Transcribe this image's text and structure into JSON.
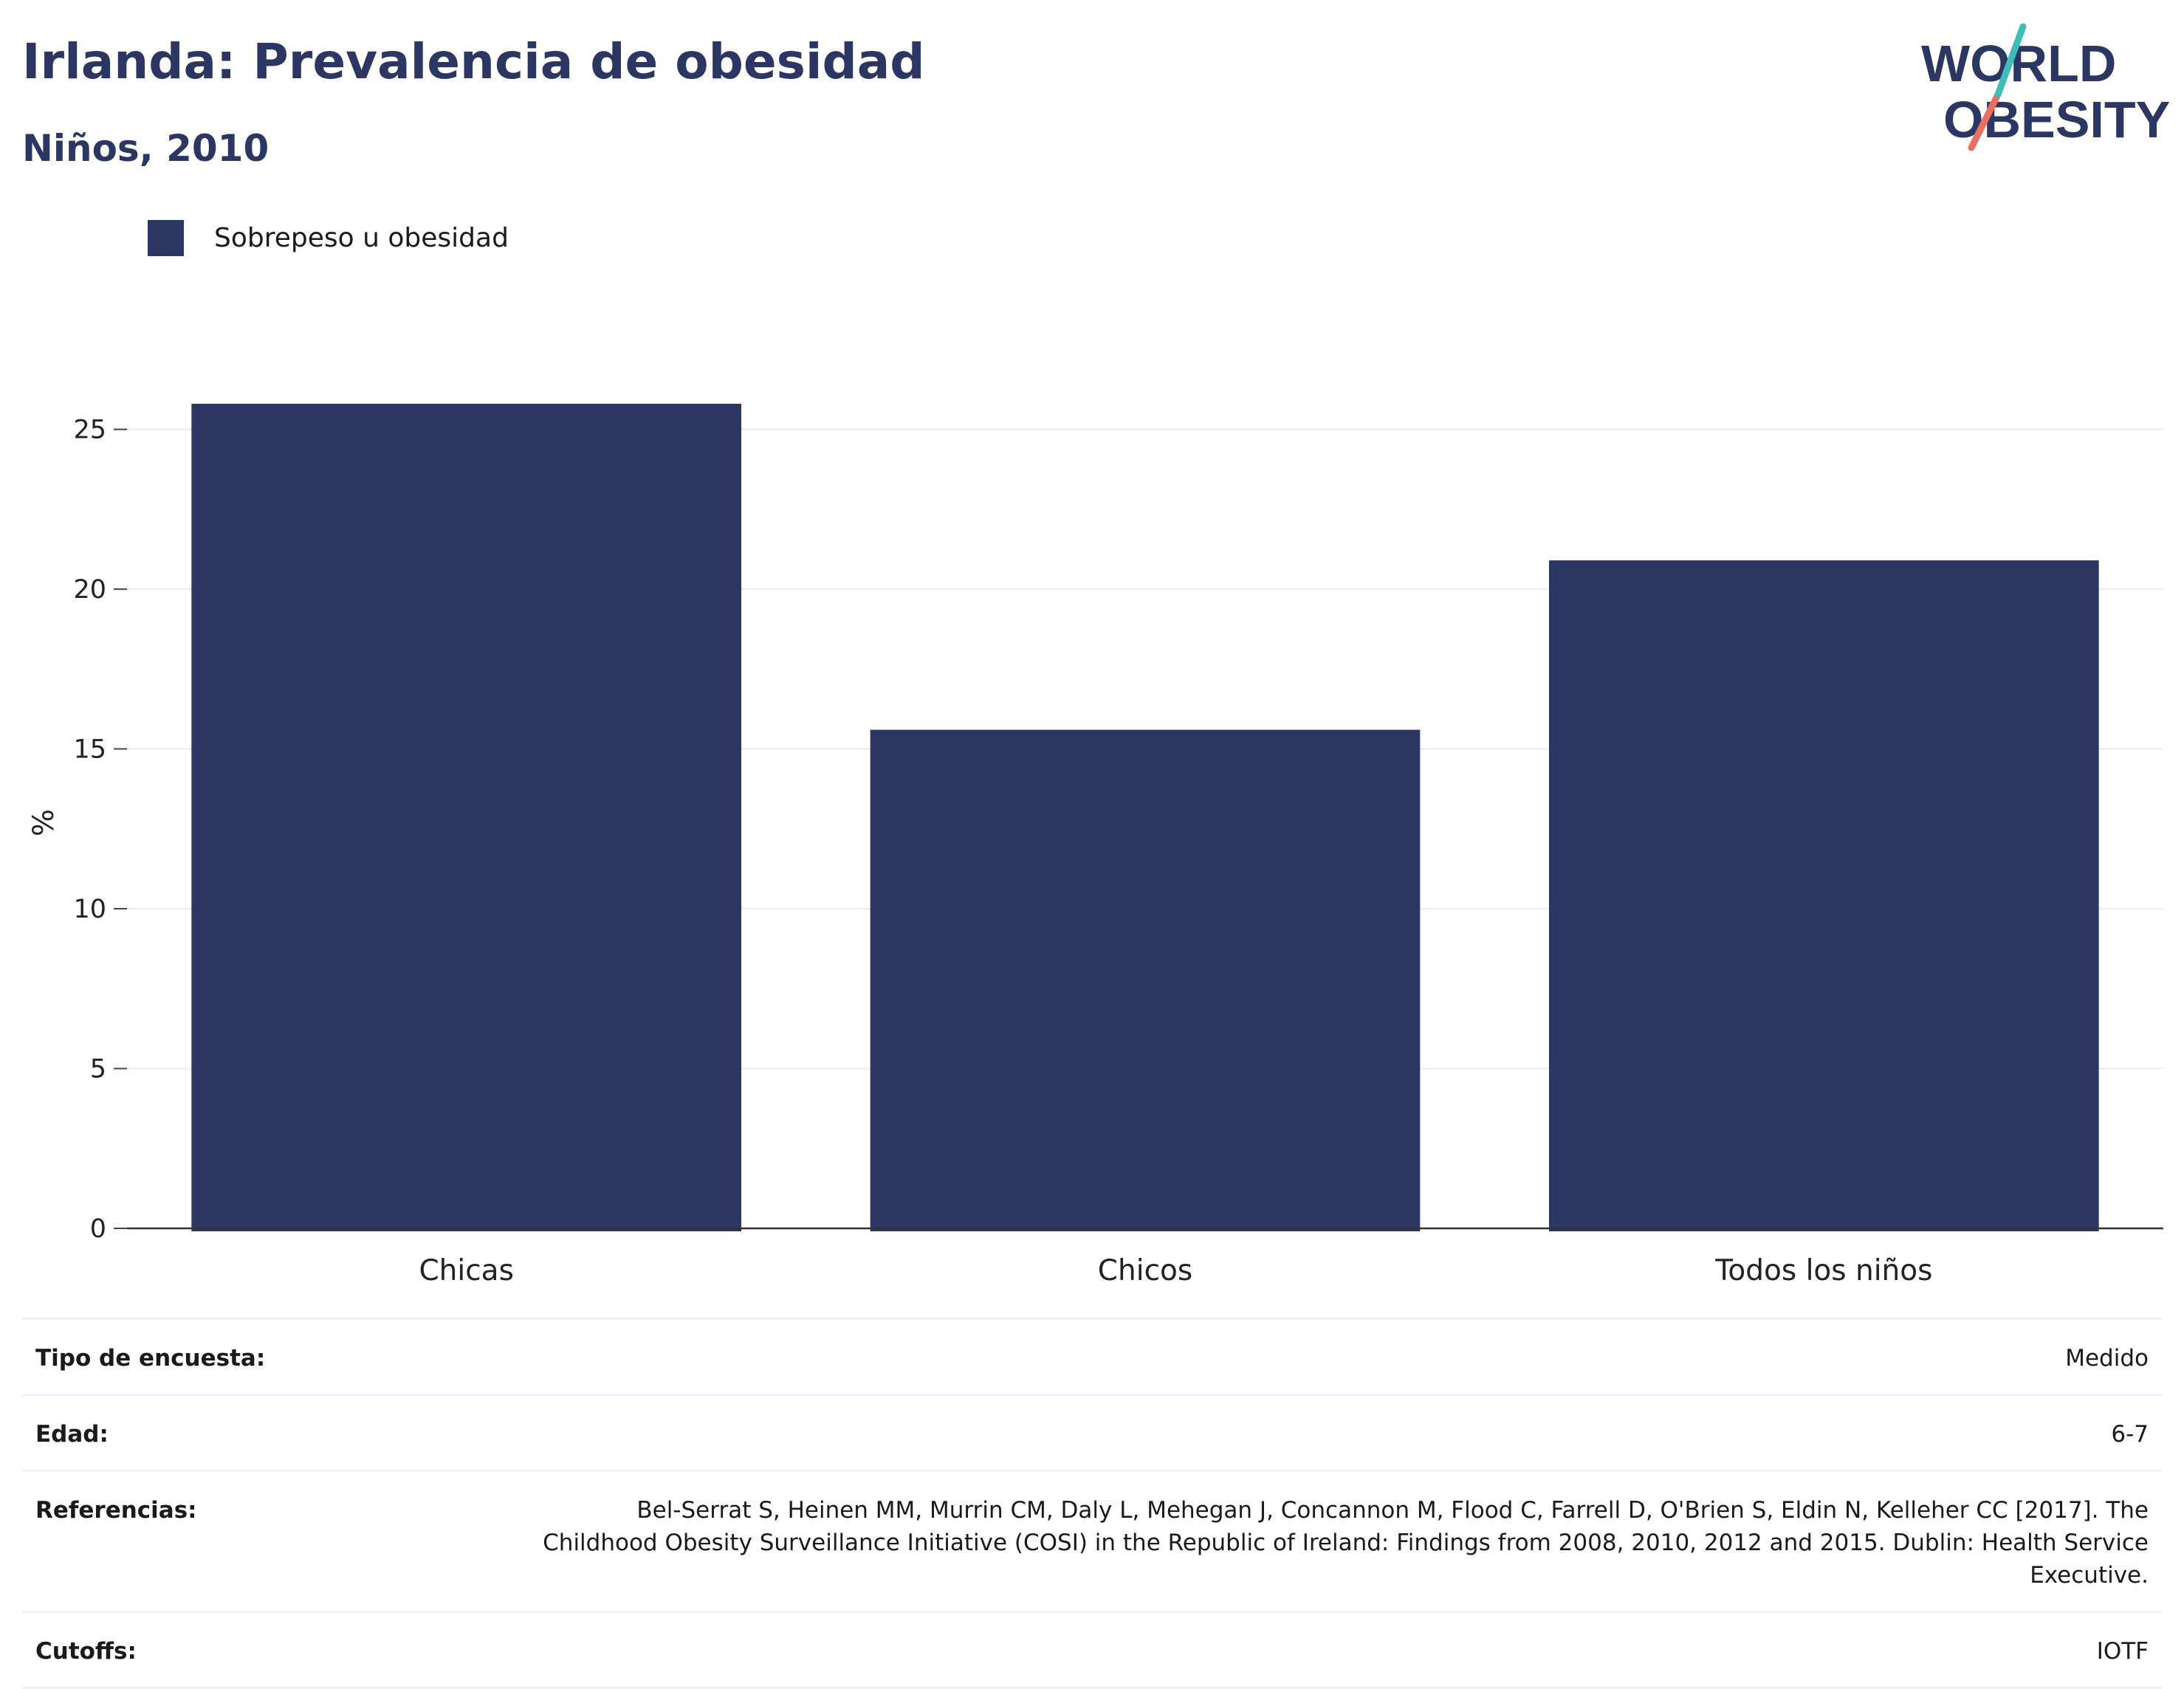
{
  "header": {
    "title": "Irlanda: Prevalencia de obesidad",
    "subtitle": "Niños, 2010"
  },
  "logo": {
    "line1": "WORLD",
    "line2": "OBESITY",
    "colors": {
      "navy": "#2b3762",
      "teal": "#3dbdb6",
      "coral": "#e9705f"
    }
  },
  "legend": {
    "label": "Sobrepeso u obesidad",
    "color": "#2b3762"
  },
  "chart_data": {
    "type": "bar",
    "categories": [
      "Chicas",
      "Chicos",
      "Todos los niños"
    ],
    "series": [
      {
        "name": "Sobrepeso u obesidad",
        "values": [
          25.8,
          15.6,
          20.9
        ],
        "color": "#2b3762"
      }
    ],
    "ylabel": "%",
    "ylim": [
      0,
      27
    ],
    "yticks": [
      0,
      5,
      10,
      15,
      20,
      25
    ],
    "grid": true,
    "legend_position": "top-left"
  },
  "meta": {
    "survey_label": "Tipo de encuesta:",
    "survey_value": "Medido",
    "age_label": "Edad:",
    "age_value": "6-7",
    "refs_label": "Referencias:",
    "refs_value": "Bel-Serrat S, Heinen MM, Murrin CM, Daly L, Mehegan J, Concannon M, Flood C, Farrell D, O'Brien S, Eldin N, Kelleher CC [2017]. The Childhood Obesity Surveillance Initiative (COSI) in the Republic of Ireland: Findings from 2008, 2010, 2012 and 2015. Dublin: Health Service Executive.",
    "cutoffs_label": "Cutoffs:",
    "cutoffs_value": "IOTF"
  }
}
